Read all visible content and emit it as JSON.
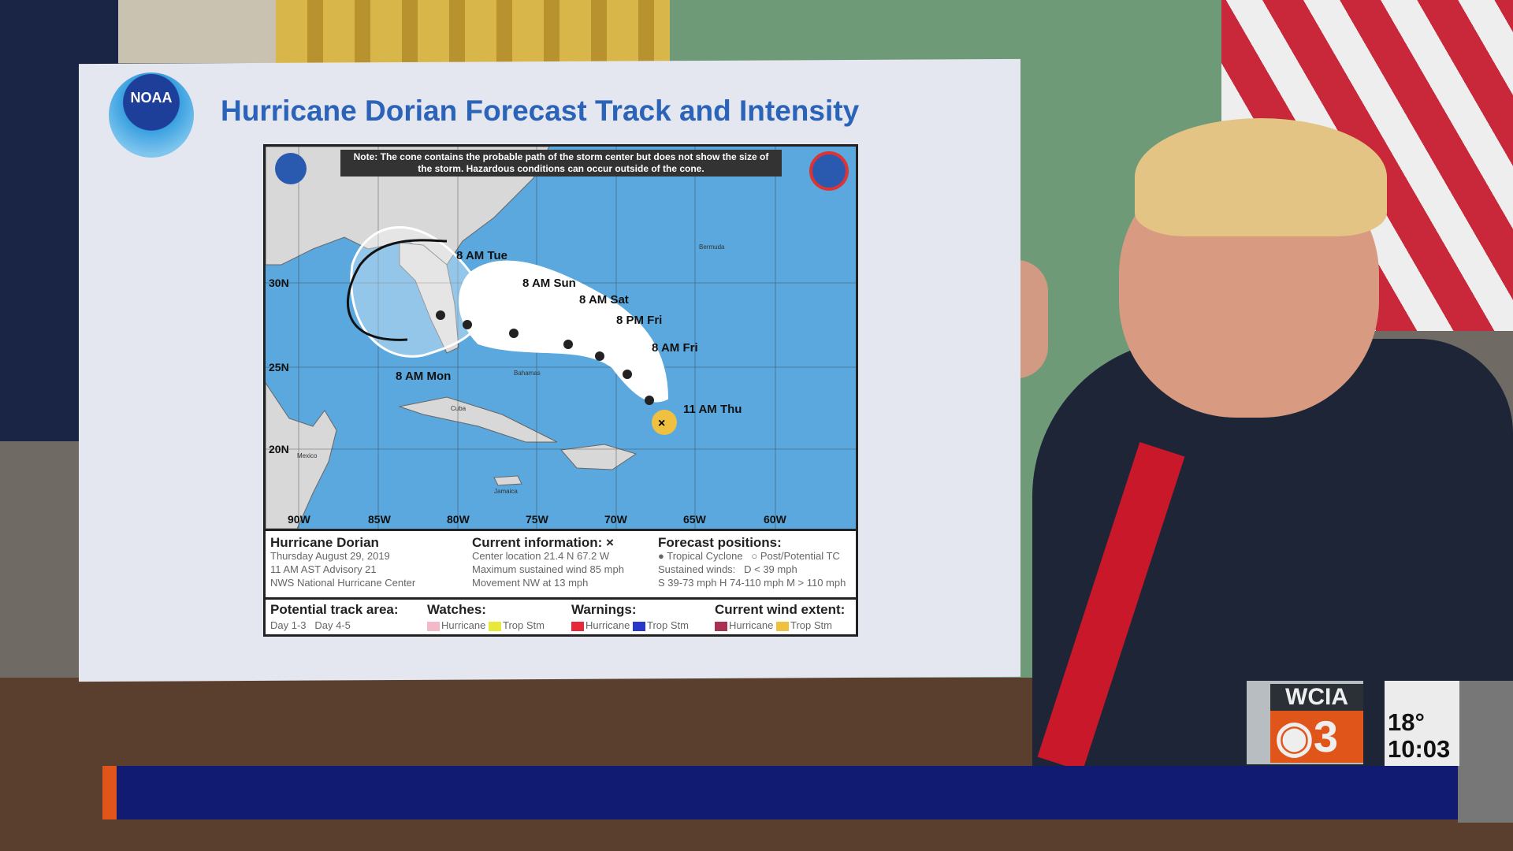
{
  "board": {
    "title": "Hurricane Dorian Forecast Track and Intensity",
    "logo_text": "NOAA",
    "note": "Note: The cone contains the probable path of the storm center but does not show the size of the storm. Hazardous conditions can occur outside of the cone.",
    "map": {
      "lon_labels": [
        "90W",
        "85W",
        "80W",
        "75W",
        "70W",
        "65W",
        "60W"
      ],
      "lat_labels": [
        "30N",
        "25N",
        "20N"
      ],
      "forecast_labels": [
        "11 AM Thu",
        "8 AM Fri",
        "8 PM Fri",
        "8 AM Sat",
        "8 AM Sun",
        "8 AM Mon",
        "8 AM Tue"
      ],
      "place_labels": [
        "Bermuda",
        "Bahamas",
        "Cuba",
        "Jamaica",
        "Mexico"
      ]
    },
    "legend": {
      "storm": {
        "name": "Hurricane Dorian",
        "date": "Thursday August 29, 2019",
        "advisory": "11 AM AST Advisory 21",
        "center": "NWS National Hurricane Center"
      },
      "current": {
        "heading": "Current information: ×",
        "location": "Center location 21.4 N 67.2 W",
        "wind": "Maximum sustained wind 85 mph",
        "movement": "Movement NW at 13 mph"
      },
      "forecast": {
        "heading": "Forecast positions:",
        "tc": "Tropical Cyclone",
        "post": "Post/Potential TC",
        "winds": "Sustained winds:",
        "d": "D < 39 mph",
        "shm": "S 39-73 mph  H 74-110 mph  M > 110 mph"
      },
      "track": {
        "heading": "Potential track area:",
        "d13": "Day 1-3",
        "d45": "Day 4-5"
      },
      "watches": {
        "heading": "Watches:",
        "hurricane": "Hurricane",
        "trop": "Trop Stm"
      },
      "warnings": {
        "heading": "Warnings:",
        "hurricane": "Hurricane",
        "trop": "Trop Stm"
      },
      "wind": {
        "heading": "Current wind extent:",
        "hurricane": "Hurricane",
        "trop": "Trop Stm"
      },
      "colors": {
        "watch_h": "#f4b8c8",
        "watch_t": "#e8e83a",
        "warn_h": "#e8283a",
        "warn_t": "#2838c8",
        "wind_h": "#a83050",
        "wind_t": "#f0c040"
      }
    }
  },
  "bug": {
    "station": "WCIA",
    "channel": "3",
    "temperature": "18°",
    "time": "10:03"
  },
  "colors": {
    "ticker": "#121b72",
    "accent": "#e0561a",
    "ocean": "#5aa8de"
  }
}
